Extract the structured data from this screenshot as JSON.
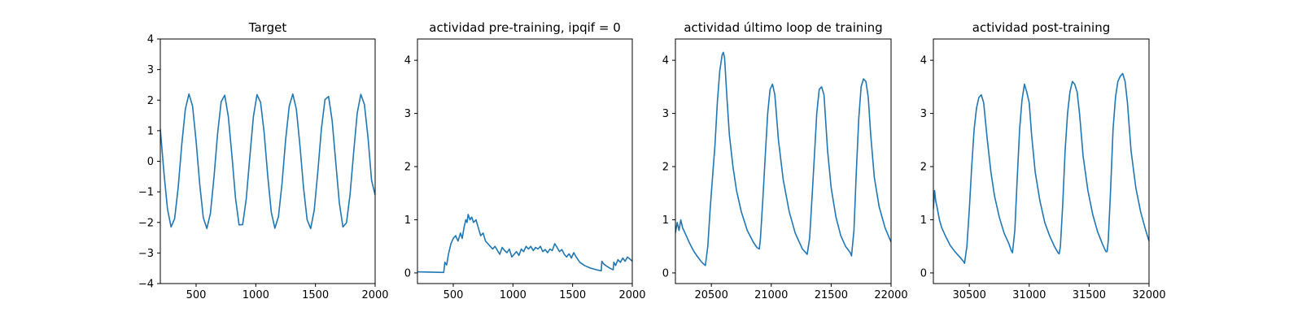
{
  "figure": {
    "line_color": "#1f77b4"
  },
  "chart_data": [
    {
      "type": "line",
      "title": "Target",
      "xlim": [
        200,
        2000
      ],
      "ylim": [
        -4,
        4
      ],
      "xticks": [
        500,
        1000,
        1500,
        2000
      ],
      "xtick_labels": [
        "500",
        "1000",
        "1500",
        "2000"
      ],
      "yticks": [
        -4,
        -3,
        -2,
        -1,
        0,
        1,
        2,
        3,
        4
      ],
      "ytick_labels": [
        "−4",
        "−3",
        "−2",
        "−1",
        "0",
        "1",
        "2",
        "3",
        "4"
      ],
      "x": [
        200,
        230,
        260,
        290,
        320,
        350,
        380,
        410,
        440,
        470,
        500,
        530,
        560,
        590,
        620,
        650,
        680,
        710,
        740,
        770,
        800,
        830,
        860,
        890,
        920,
        950,
        980,
        1010,
        1040,
        1070,
        1100,
        1130,
        1160,
        1190,
        1220,
        1250,
        1280,
        1310,
        1340,
        1370,
        1400,
        1430,
        1460,
        1490,
        1520,
        1550,
        1580,
        1610,
        1640,
        1670,
        1700,
        1730,
        1760,
        1790,
        1820,
        1850,
        1880,
        1910,
        1940,
        1970,
        2000
      ],
      "y": [
        1.05,
        -0.36,
        -1.56,
        -2.15,
        -1.88,
        -0.85,
        0.56,
        1.71,
        2.2,
        1.81,
        0.66,
        -0.74,
        -1.84,
        -2.2,
        -1.7,
        -0.51,
        0.91,
        1.95,
        2.16,
        1.46,
        0.19,
        -1.2,
        -2.08,
        -2.07,
        -1.23,
        0.14,
        1.46,
        2.18,
        1.93,
        0.94,
        -0.47,
        -1.67,
        -2.19,
        -1.81,
        -0.72,
        0.7,
        1.8,
        2.2,
        1.7,
        0.51,
        -0.86,
        -1.91,
        -2.2,
        -1.59,
        -0.33,
        1.07,
        2.02,
        2.12,
        1.32,
        -0.03,
        -1.36,
        -2.15,
        -2.01,
        -1.08,
        0.29,
        1.58,
        2.19,
        1.86,
        0.79,
        -0.62,
        -1.1
      ]
    },
    {
      "type": "line",
      "title": "actividad pre-training, ipqif = 0",
      "xlim": [
        200,
        2000
      ],
      "ylim": [
        -0.2,
        4.4
      ],
      "xticks": [
        500,
        1000,
        1500,
        2000
      ],
      "xtick_labels": [
        "500",
        "1000",
        "1500",
        "2000"
      ],
      "yticks": [
        0,
        1,
        2,
        3,
        4
      ],
      "ytick_labels": [
        "0",
        "1",
        "2",
        "3",
        "4"
      ],
      "x": [
        200,
        420,
        430,
        445,
        460,
        480,
        500,
        520,
        540,
        560,
        575,
        590,
        605,
        615,
        625,
        640,
        655,
        670,
        690,
        710,
        730,
        750,
        770,
        790,
        810,
        830,
        850,
        870,
        890,
        910,
        930,
        950,
        970,
        990,
        1010,
        1030,
        1050,
        1070,
        1090,
        1110,
        1130,
        1150,
        1170,
        1190,
        1210,
        1230,
        1250,
        1270,
        1290,
        1310,
        1330,
        1350,
        1370,
        1390,
        1410,
        1430,
        1450,
        1470,
        1490,
        1510,
        1530,
        1560,
        1600,
        1650,
        1700,
        1740,
        1745,
        1760,
        1790,
        1820,
        1840,
        1845,
        1860,
        1880,
        1900,
        1920,
        1940,
        1960,
        1980,
        2000
      ],
      "y": [
        0.02,
        0.01,
        0.2,
        0.15,
        0.35,
        0.55,
        0.65,
        0.7,
        0.6,
        0.75,
        0.65,
        0.85,
        1.0,
        0.95,
        1.1,
        1.0,
        1.05,
        0.95,
        1.0,
        0.85,
        0.7,
        0.75,
        0.6,
        0.55,
        0.5,
        0.45,
        0.5,
        0.42,
        0.35,
        0.48,
        0.42,
        0.38,
        0.45,
        0.3,
        0.35,
        0.4,
        0.33,
        0.45,
        0.4,
        0.5,
        0.45,
        0.5,
        0.42,
        0.48,
        0.45,
        0.5,
        0.4,
        0.44,
        0.38,
        0.45,
        0.42,
        0.55,
        0.48,
        0.4,
        0.44,
        0.35,
        0.3,
        0.36,
        0.28,
        0.38,
        0.3,
        0.2,
        0.14,
        0.09,
        0.06,
        0.04,
        0.22,
        0.17,
        0.12,
        0.08,
        0.06,
        0.2,
        0.14,
        0.25,
        0.2,
        0.28,
        0.22,
        0.3,
        0.26,
        0.22
      ]
    },
    {
      "type": "line",
      "title": "actividad último loop de training",
      "xlim": [
        20200,
        22000
      ],
      "ylim": [
        -0.2,
        4.4
      ],
      "xticks": [
        20500,
        21000,
        21500,
        22000
      ],
      "xtick_labels": [
        "20500",
        "21000",
        "21500",
        "22000"
      ],
      "yticks": [
        0,
        1,
        2,
        3,
        4
      ],
      "ytick_labels": [
        "0",
        "1",
        "2",
        "3",
        "4"
      ],
      "x": [
        20200,
        20215,
        20230,
        20245,
        20260,
        20290,
        20320,
        20350,
        20380,
        20420,
        20450,
        20470,
        20490,
        20510,
        20530,
        20550,
        20570,
        20590,
        20600,
        20610,
        20630,
        20650,
        20680,
        20710,
        20750,
        20800,
        20850,
        20880,
        20900,
        20910,
        20930,
        20950,
        20970,
        20990,
        21010,
        21030,
        21060,
        21100,
        21150,
        21200,
        21240,
        21260,
        21280,
        21300,
        21320,
        21340,
        21360,
        21380,
        21400,
        21420,
        21440,
        21470,
        21500,
        21540,
        21580,
        21620,
        21660,
        21670,
        21690,
        21710,
        21730,
        21750,
        21770,
        21790,
        21810,
        21830,
        21860,
        21900,
        21950,
        22000
      ],
      "y": [
        0.75,
        0.95,
        0.8,
        1.0,
        0.85,
        0.7,
        0.55,
        0.42,
        0.32,
        0.2,
        0.14,
        0.5,
        1.2,
        1.8,
        2.4,
        3.2,
        3.8,
        4.1,
        4.15,
        4.05,
        3.3,
        2.6,
        2.0,
        1.55,
        1.15,
        0.8,
        0.58,
        0.48,
        0.45,
        0.65,
        1.4,
        2.2,
        3.0,
        3.45,
        3.55,
        3.35,
        2.5,
        1.75,
        1.15,
        0.75,
        0.55,
        0.45,
        0.4,
        0.35,
        0.65,
        1.4,
        2.2,
        3.0,
        3.45,
        3.5,
        3.35,
        2.3,
        1.6,
        1.05,
        0.7,
        0.5,
        0.38,
        0.32,
        0.8,
        1.9,
        2.9,
        3.5,
        3.65,
        3.6,
        3.3,
        2.6,
        1.8,
        1.25,
        0.85,
        0.58
      ]
    },
    {
      "type": "line",
      "title": "actividad post-training",
      "xlim": [
        30200,
        32000
      ],
      "ylim": [
        -0.2,
        4.4
      ],
      "xticks": [
        30500,
        31000,
        31500,
        32000
      ],
      "xtick_labels": [
        "30500",
        "31000",
        "31500",
        "32000"
      ],
      "yticks": [
        0,
        1,
        2,
        3,
        4
      ],
      "ytick_labels": [
        "0",
        "1",
        "2",
        "3",
        "4"
      ],
      "x": [
        30200,
        30210,
        30220,
        30230,
        30250,
        30270,
        30300,
        30340,
        30380,
        30420,
        30450,
        30460,
        30480,
        30500,
        30520,
        30540,
        30560,
        30580,
        30600,
        30620,
        30650,
        30680,
        30710,
        30750,
        30790,
        30830,
        30850,
        30860,
        30880,
        30900,
        30920,
        30940,
        30960,
        30980,
        31000,
        31020,
        31050,
        31090,
        31130,
        31170,
        31210,
        31240,
        31250,
        31260,
        31280,
        31300,
        31320,
        31340,
        31360,
        31380,
        31400,
        31420,
        31450,
        31490,
        31530,
        31570,
        31610,
        31640,
        31650,
        31660,
        31680,
        31700,
        31720,
        31740,
        31760,
        31780,
        31800,
        31820,
        31850,
        31890,
        31930,
        31970,
        32000
      ],
      "y": [
        1.2,
        1.55,
        1.35,
        1.25,
        1.0,
        0.85,
        0.7,
        0.52,
        0.4,
        0.3,
        0.22,
        0.18,
        0.5,
        1.2,
        2.0,
        2.7,
        3.1,
        3.3,
        3.35,
        3.2,
        2.5,
        1.9,
        1.45,
        1.05,
        0.75,
        0.55,
        0.42,
        0.38,
        0.8,
        1.8,
        2.7,
        3.25,
        3.55,
        3.4,
        3.2,
        2.6,
        1.9,
        1.35,
        0.95,
        0.7,
        0.5,
        0.38,
        0.36,
        0.5,
        1.3,
        2.3,
        3.0,
        3.4,
        3.6,
        3.55,
        3.4,
        3.0,
        2.2,
        1.55,
        1.1,
        0.78,
        0.55,
        0.4,
        0.4,
        0.6,
        1.6,
        2.7,
        3.3,
        3.6,
        3.7,
        3.75,
        3.6,
        3.2,
        2.3,
        1.6,
        1.15,
        0.82,
        0.6
      ]
    }
  ]
}
